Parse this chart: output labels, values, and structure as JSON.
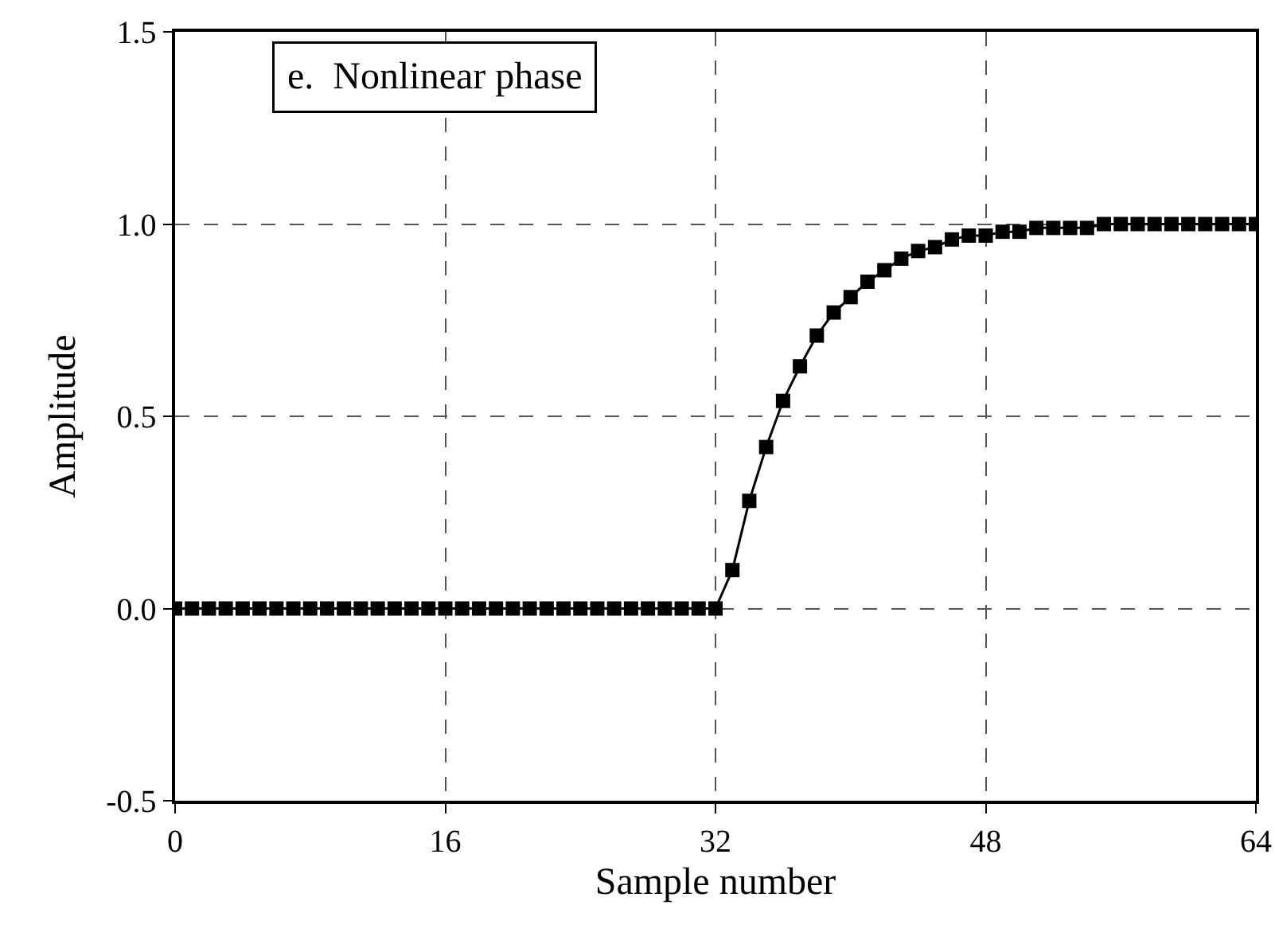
{
  "chart_data": {
    "type": "line",
    "annotations": [
      "e.  Nonlinear phase"
    ],
    "xlabel": "Sample number",
    "ylabel": "Amplitude",
    "x": [
      0,
      1,
      2,
      3,
      4,
      5,
      6,
      7,
      8,
      9,
      10,
      11,
      12,
      13,
      14,
      15,
      16,
      17,
      18,
      19,
      20,
      21,
      22,
      23,
      24,
      25,
      26,
      27,
      28,
      29,
      30,
      31,
      32,
      33,
      34,
      35,
      36,
      37,
      38,
      39,
      40,
      41,
      42,
      43,
      44,
      45,
      46,
      47,
      48,
      49,
      50,
      51,
      52,
      53,
      54,
      55,
      56,
      57,
      58,
      59,
      60,
      61,
      62,
      63,
      64
    ],
    "series": [
      {
        "color": "#000000",
        "values": [
          0,
          0,
          0,
          0,
          0,
          0,
          0,
          0,
          0,
          0,
          0,
          0,
          0,
          0,
          0,
          0,
          0,
          0,
          0,
          0,
          0,
          0,
          0,
          0,
          0,
          0,
          0,
          0,
          0,
          0,
          0,
          0,
          0,
          0.1,
          0.28,
          0.42,
          0.54,
          0.63,
          0.71,
          0.77,
          0.81,
          0.85,
          0.88,
          0.91,
          0.93,
          0.94,
          0.96,
          0.97,
          0.97,
          0.98,
          0.98,
          0.99,
          0.99,
          0.99,
          0.99,
          1.0,
          1.0,
          1.0,
          1.0,
          1.0,
          1.0,
          1.0,
          1.0,
          1.0,
          1.0
        ]
      }
    ],
    "xlim": [
      0,
      64
    ],
    "xticks": [
      0,
      16,
      32,
      48,
      64
    ],
    "ylim": [
      -0.5,
      1.5
    ],
    "yticks": [
      {
        "value": -0.5,
        "label": "-0.5"
      },
      {
        "value": 0,
        "label": "0.0"
      },
      {
        "value": 0.5,
        "label": "0.5"
      },
      {
        "value": 1,
        "label": "1.0"
      },
      {
        "value": 1.5,
        "label": "1.5"
      }
    ],
    "grid": true,
    "marker": "square",
    "line_style": "solid"
  }
}
